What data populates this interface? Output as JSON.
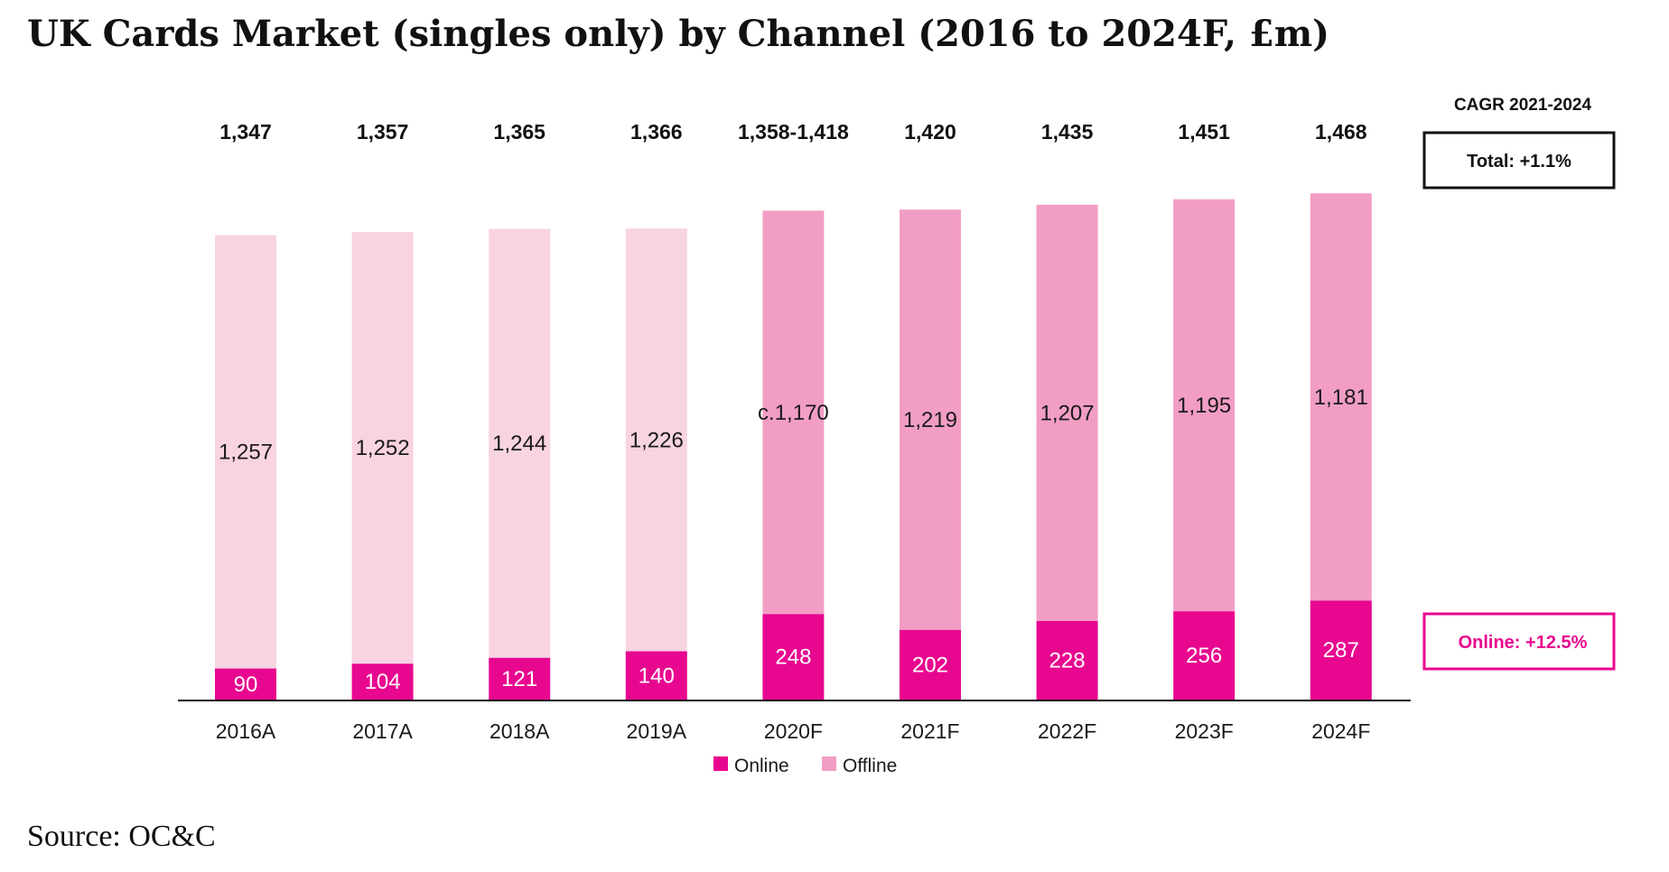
{
  "chart_data": {
    "type": "bar",
    "stacked": true,
    "title": "UK Cards Market (singles only) by Channel (2016 to 2024F, £m)",
    "categories": [
      "2016A",
      "2017A",
      "2018A",
      "2019A",
      "2020F",
      "2021F",
      "2022F",
      "2023F",
      "2024F"
    ],
    "series": [
      {
        "name": "Online",
        "values": [
          90,
          104,
          121,
          140,
          248,
          202,
          228,
          256,
          287
        ]
      },
      {
        "name": "Offline",
        "values": [
          1257,
          1252,
          1244,
          1226,
          1170,
          1219,
          1207,
          1195,
          1181
        ]
      }
    ],
    "totals": [
      1347,
      1357,
      1365,
      1366,
      1418,
      1420,
      1435,
      1451,
      1468
    ],
    "total_labels": [
      "1,347",
      "1,357",
      "1,365",
      "1,366",
      "1,358-1,418",
      "1,420",
      "1,435",
      "1,451",
      "1,468"
    ],
    "online_labels": [
      "90",
      "104",
      "121",
      "140",
      "248",
      "202",
      "228",
      "256",
      "287"
    ],
    "offline_labels": [
      "1,257",
      "1,252",
      "1,244",
      "1,226",
      "c.1,170",
      "1,219",
      "1,207",
      "1,195",
      "1,181"
    ],
    "forecast_from_index": 4,
    "ylim": [
      0,
      1500
    ],
    "grid": false,
    "legend": "bottom-center",
    "legend_entries": [
      "Online",
      "Offline"
    ],
    "annotations": {
      "cagr_title": "CAGR 2021-2024",
      "total": "Total: +1.1%",
      "online": "Online: +12.5%"
    },
    "source": "Source: OC&C"
  },
  "colors": {
    "online": "#e8078f",
    "offline_actual": "#f8d3e1",
    "offline_forecast": "#f29ec4",
    "axis": "#111111",
    "text": "#111111"
  }
}
